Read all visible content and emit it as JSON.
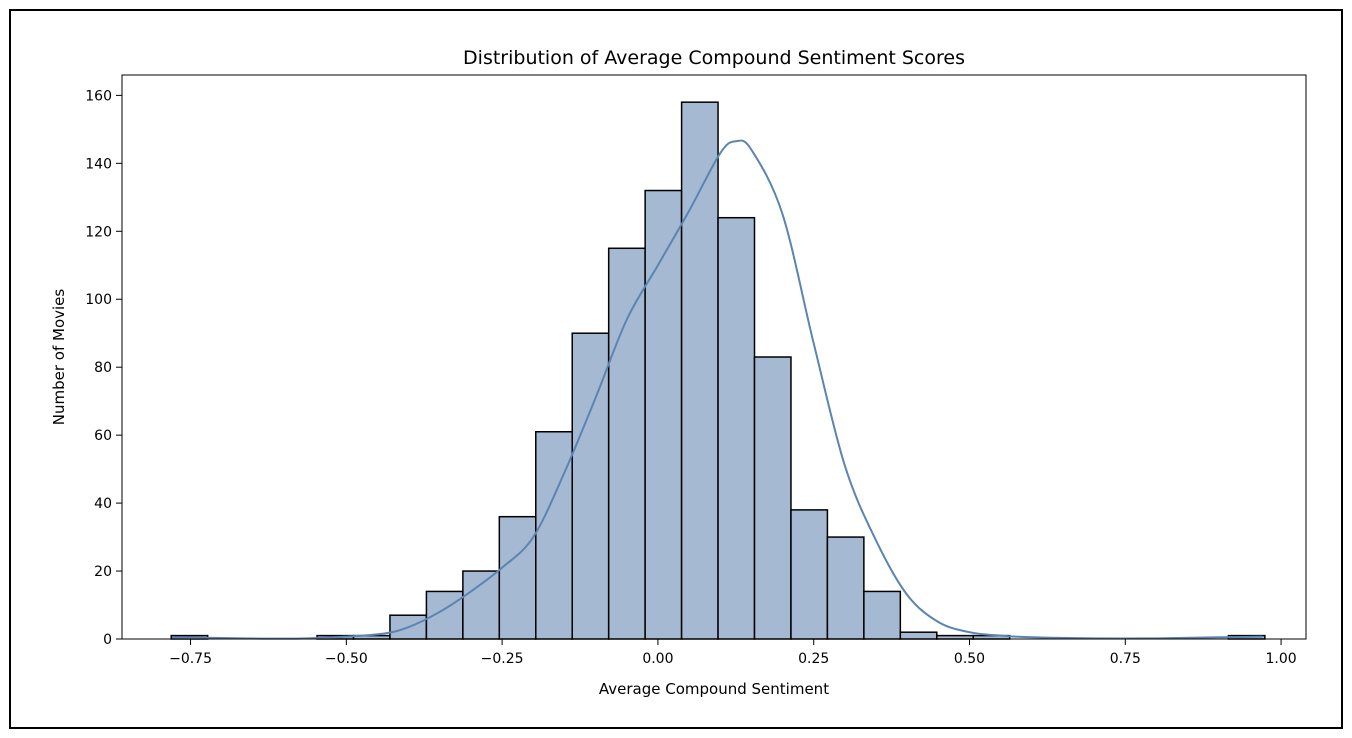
{
  "chart_data": {
    "type": "bar",
    "title": "Distribution of Average Compound Sentiment Scores",
    "xlabel": "Average Compound Sentiment",
    "ylabel": "Number of Movies",
    "xlim": [
      -0.86,
      1.04
    ],
    "ylim": [
      0,
      166
    ],
    "bin_edges": [
      -0.781,
      -0.7225,
      -0.664,
      -0.6055,
      -0.547,
      -0.4885,
      -0.43,
      -0.3715,
      -0.313,
      -0.2545,
      -0.196,
      -0.1375,
      -0.079,
      -0.0205,
      0.038,
      0.0965,
      0.155,
      0.2135,
      0.272,
      0.3305,
      0.389,
      0.4475,
      0.506,
      0.5645,
      0.623,
      0.6815,
      0.74,
      0.7985,
      0.857,
      0.9155,
      0.974
    ],
    "counts": [
      1,
      0,
      0,
      0,
      1,
      1,
      7,
      14,
      20,
      36,
      61,
      90,
      115,
      132,
      158,
      124,
      83,
      38,
      30,
      14,
      2,
      1,
      1,
      0,
      0,
      0,
      0,
      0,
      0,
      1
    ],
    "kde": {
      "x": [
        -0.78,
        -0.6,
        -0.5,
        -0.44,
        -0.4,
        -0.35,
        -0.3,
        -0.25,
        -0.2,
        -0.15,
        -0.1,
        -0.05,
        0.0,
        0.05,
        0.1,
        0.125,
        0.15,
        0.2,
        0.25,
        0.3,
        0.35,
        0.4,
        0.45,
        0.5,
        0.55,
        0.6,
        0.7,
        0.8,
        0.9,
        0.97
      ],
      "y": [
        0.5,
        0.1,
        0.7,
        1.6,
        3.5,
        8,
        14,
        21,
        30,
        49,
        71,
        94,
        110,
        126,
        143,
        146.5,
        144,
        125,
        87,
        51,
        29,
        13,
        5,
        2,
        1,
        0.5,
        0.2,
        0.2,
        0.5,
        0.7
      ]
    },
    "xticks": [
      -0.75,
      -0.5,
      -0.25,
      0.0,
      0.25,
      0.5,
      0.75,
      1.0
    ],
    "xtick_labels": [
      "−0.75",
      "−0.50",
      "−0.25",
      "0.00",
      "0.25",
      "0.50",
      "0.75",
      "1.00"
    ],
    "yticks": [
      0,
      20,
      40,
      60,
      80,
      100,
      120,
      140,
      160
    ],
    "ytick_labels": [
      "0",
      "20",
      "40",
      "60",
      "80",
      "100",
      "120",
      "140",
      "160"
    ],
    "grid": false,
    "bar_color": "#a5b9d3",
    "bar_edge_color": "#000000",
    "kde_color": "#5b84b1"
  }
}
